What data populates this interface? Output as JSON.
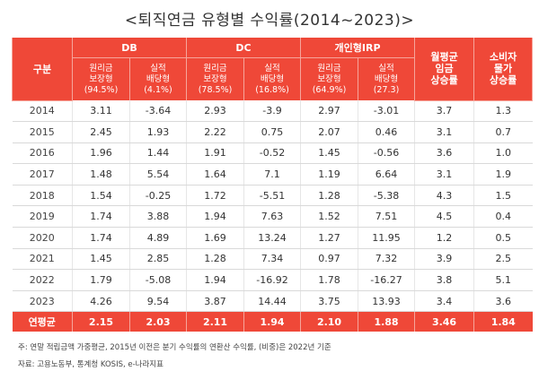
{
  "title": "<퇴직연금 유형별 수익률(2014~2023)>",
  "header": {
    "gubun": "구분",
    "groups": [
      "DB",
      "DC",
      "개인형IRP"
    ],
    "sub": [
      {
        "a": "원리금",
        "b": "보장형",
        "c": "(94.5%)"
      },
      {
        "a": "실적",
        "b": "배당형",
        "c": "(4.1%)"
      },
      {
        "a": "원리금",
        "b": "보장형",
        "c": "(78.5%)"
      },
      {
        "a": "실적",
        "b": "배당형",
        "c": "(16.8%)"
      },
      {
        "a": "원리금",
        "b": "보장형",
        "c": "(64.9%)"
      },
      {
        "a": "실적",
        "b": "배당형",
        "c": "(27.3)"
      }
    ],
    "wage": {
      "a": "월평균",
      "b": "임금",
      "c": "상승률"
    },
    "cpi": {
      "a": "소비자",
      "b": "물가",
      "c": "상승률"
    }
  },
  "rows": [
    [
      "2014",
      "3.11",
      "-3.64",
      "2.93",
      "-3.9",
      "2.97",
      "-3.01",
      "3.7",
      "1.3"
    ],
    [
      "2015",
      "2.45",
      "1.93",
      "2.22",
      "0.75",
      "2.07",
      "0.46",
      "3.1",
      "0.7"
    ],
    [
      "2016",
      "1.96",
      "1.44",
      "1.91",
      "-0.52",
      "1.45",
      "-0.56",
      "3.6",
      "1.0"
    ],
    [
      "2017",
      "1.48",
      "5.54",
      "1.64",
      "7.1",
      "1.19",
      "6.64",
      "3.1",
      "1.9"
    ],
    [
      "2018",
      "1.54",
      "-0.25",
      "1.72",
      "-5.51",
      "1.28",
      "-5.38",
      "4.3",
      "1.5"
    ],
    [
      "2019",
      "1.74",
      "3.88",
      "1.94",
      "7.63",
      "1.52",
      "7.51",
      "4.5",
      "0.4"
    ],
    [
      "2020",
      "1.74",
      "4.89",
      "1.69",
      "13.24",
      "1.27",
      "11.95",
      "1.2",
      "0.5"
    ],
    [
      "2021",
      "1.45",
      "2.85",
      "1.28",
      "7.34",
      "0.97",
      "7.32",
      "3.9",
      "2.5"
    ],
    [
      "2022",
      "1.79",
      "-5.08",
      "1.94",
      "-16.92",
      "1.78",
      "-16.27",
      "3.8",
      "5.1"
    ],
    [
      "2023",
      "4.26",
      "9.54",
      "3.87",
      "14.44",
      "3.75",
      "13.93",
      "3.4",
      "3.6"
    ]
  ],
  "footer": [
    "연평균",
    "2.15",
    "2.03",
    "2.11",
    "1.94",
    "2.10",
    "1.88",
    "3.46",
    "1.84"
  ],
  "notes": [
    "주: 연말 적립금액 가중평균, 2015년 이전은 분기 수익률의 연환산 수익률, (비중)은 2022년 기준",
    "자료: 고용노동부, 통계청 KOSIS, e-나라지표"
  ],
  "colors": {
    "header": "#ef4838",
    "text_on_header": "#ffffff"
  }
}
